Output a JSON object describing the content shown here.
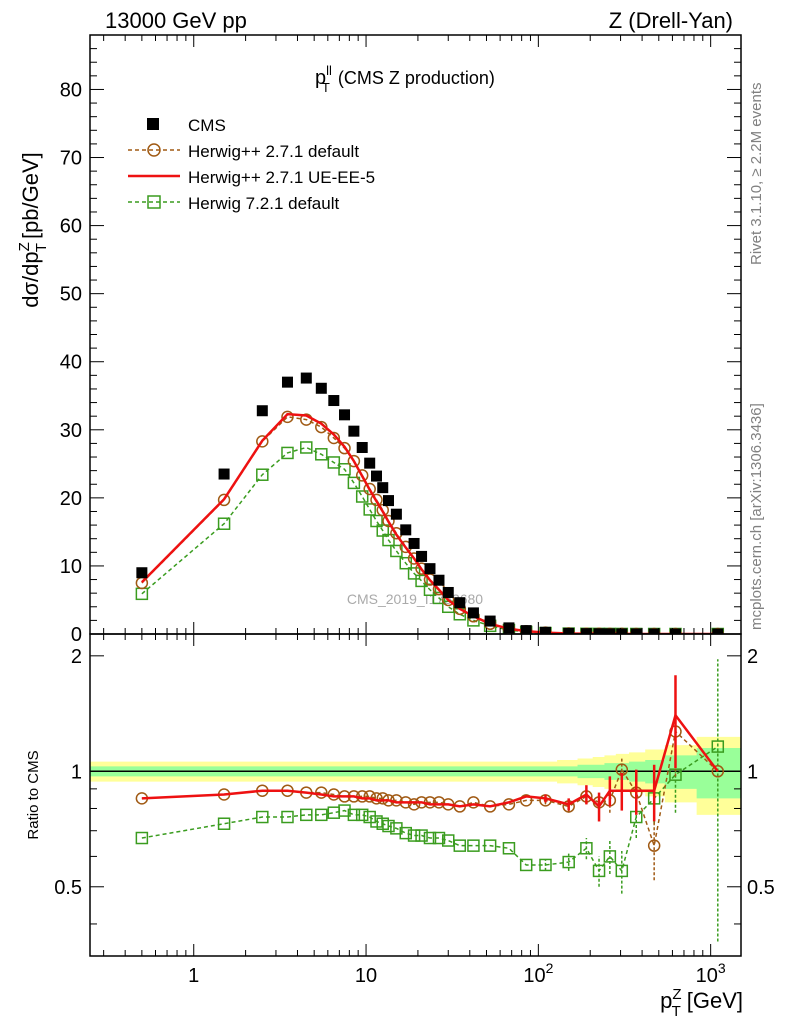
{
  "header": {
    "beam": "13000 GeV pp",
    "process": "Z (Drell-Yan)"
  },
  "side_labels": {
    "rivet": "Rivet 3.1.10, ≥ 2.2M events",
    "mcplots": "mcplots.cern.ch [arXiv:1306.3436]"
  },
  "colors": {
    "cms": "#000000",
    "herwigpp_default": "#a05a14",
    "herwigpp_ueee5": "#ee1111",
    "herwig7": "#3a9c1f",
    "band_yellow": "#ffff99",
    "band_green": "#99ff99"
  },
  "chart_data": [
    {
      "type": "scatter",
      "title_main": "p",
      "title_sup": "ll",
      "title_sub": "T",
      "title_rest": "(CMS Z production)",
      "watermark": "CMS_2019_I1753680",
      "ylabel": "dσ/dp",
      "ylabel_sup": "Z",
      "ylabel_sub": "T",
      "ylabel_unit": "[pb/GeV]",
      "xscale": "log",
      "xlim": [
        0.25,
        1500
      ],
      "ylim": [
        0,
        88
      ],
      "yticks": [
        0,
        10,
        20,
        30,
        40,
        50,
        60,
        70,
        80
      ],
      "legend": {
        "placement": "top-left",
        "entries": [
          "CMS",
          "Herwig++ 2.7.1 default",
          "Herwig++ 2.7.1 UE-EE-5",
          "Herwig 7.2.1 default"
        ]
      },
      "x": [
        0.5,
        1.5,
        2.5,
        3.5,
        4.5,
        5.5,
        6.5,
        7.5,
        8.5,
        9.5,
        10.5,
        11.5,
        12.5,
        13.5,
        15,
        17,
        19,
        21,
        23.5,
        26.5,
        30,
        35,
        42,
        52.5,
        67.5,
        85,
        110,
        150,
        190,
        225,
        260,
        305,
        370,
        470,
        625,
        1100
      ],
      "series": [
        {
          "name": "CMS",
          "style": "markers-square",
          "values": [
            9.0,
            23.5,
            32.8,
            37.0,
            37.6,
            36.1,
            34.3,
            32.2,
            29.8,
            27.4,
            25.1,
            23.2,
            21.5,
            19.6,
            17.6,
            15.3,
            13.3,
            11.4,
            9.6,
            7.9,
            6.1,
            4.6,
            3.1,
            1.9,
            0.9,
            0.5,
            0.25,
            0.1,
            0.05,
            0.035,
            0.025,
            0.015,
            0.008,
            0.004,
            0.0015,
            0.0002
          ]
        },
        {
          "name": "Herwig++ 2.7.1 default",
          "style": "dashed-circles",
          "values": [
            7.5,
            19.7,
            28.3,
            31.9,
            31.5,
            30.4,
            28.8,
            27.3,
            25.4,
            23.3,
            21.3,
            19.7,
            18.2,
            16.6,
            14.8,
            12.8,
            11.1,
            9.6,
            8.0,
            6.6,
            5.0,
            3.7,
            2.6,
            1.5,
            0.75,
            0.4,
            0.2,
            0.08,
            0.04,
            0.03,
            0.025,
            0.013,
            0.007,
            0.0026,
            0.0019,
            0.0002
          ]
        },
        {
          "name": "Herwig++ 2.7.1 UE-EE-5",
          "style": "solid-line",
          "values": [
            7.6,
            19.8,
            28.4,
            32.3,
            32.1,
            30.9,
            29.3,
            27.5,
            25.4,
            23.2,
            21.2,
            19.5,
            18.0,
            16.5,
            14.6,
            12.7,
            11.1,
            9.5,
            7.9,
            6.5,
            5.0,
            3.7,
            2.6,
            1.5,
            0.77,
            0.43,
            0.21,
            0.08,
            0.04,
            0.03,
            0.022,
            0.013,
            0.007,
            0.0035,
            0.0021,
            0.0002
          ]
        },
        {
          "name": "Herwig 7.2.1 default",
          "style": "dashed-open-squares",
          "values": [
            5.9,
            16.2,
            23.4,
            26.6,
            27.4,
            26.4,
            25.2,
            24.2,
            22.2,
            20.2,
            18.3,
            16.6,
            15.2,
            13.8,
            12.2,
            10.4,
            8.9,
            7.8,
            6.5,
            5.3,
            4.0,
            2.9,
            2.0,
            1.2,
            0.58,
            0.3,
            0.14,
            0.06,
            0.03,
            0.019,
            0.015,
            0.008,
            0.006,
            0.0034,
            0.0015,
            0.0002
          ]
        }
      ]
    },
    {
      "type": "scatter",
      "ylabel": "Ratio to CMS",
      "xlabel": "p",
      "xlabel_sup": "Z",
      "xlabel_sub": "T",
      "xlabel_unit": "[GeV]",
      "xscale": "log",
      "xlim": [
        0.25,
        1500
      ],
      "ylim": [
        0.33,
        2.28
      ],
      "yticks": [
        0.5,
        1,
        2
      ],
      "xticks": [
        1,
        10,
        100,
        1000
      ],
      "xtick_labels": [
        {
          "base": "1",
          "exp": ""
        },
        {
          "base": "10",
          "exp": ""
        },
        {
          "base": "10",
          "exp": "2"
        },
        {
          "base": "10",
          "exp": "3"
        }
      ],
      "band": {
        "yellow_half_width": [
          0.06,
          0.06,
          0.06,
          0.06,
          0.06,
          0.06,
          0.06,
          0.06,
          0.06,
          0.06,
          0.06,
          0.06,
          0.06,
          0.06,
          0.06,
          0.06,
          0.06,
          0.06,
          0.06,
          0.06,
          0.06,
          0.06,
          0.06,
          0.06,
          0.06,
          0.06,
          0.06,
          0.07,
          0.08,
          0.09,
          0.1,
          0.11,
          0.12,
          0.14,
          0.17,
          0.23
        ],
        "green_half_width": [
          0.03,
          0.03,
          0.03,
          0.03,
          0.03,
          0.03,
          0.03,
          0.03,
          0.03,
          0.03,
          0.03,
          0.03,
          0.03,
          0.03,
          0.03,
          0.03,
          0.03,
          0.03,
          0.03,
          0.03,
          0.03,
          0.03,
          0.03,
          0.03,
          0.03,
          0.03,
          0.03,
          0.03,
          0.04,
          0.04,
          0.05,
          0.05,
          0.06,
          0.07,
          0.1,
          0.15
        ]
      },
      "series": [
        {
          "name": "Herwig++ 2.7.1 default",
          "values": [
            0.85,
            0.87,
            0.89,
            0.89,
            0.88,
            0.88,
            0.87,
            0.86,
            0.86,
            0.86,
            0.86,
            0.85,
            0.85,
            0.84,
            0.84,
            0.83,
            0.82,
            0.83,
            0.83,
            0.83,
            0.82,
            0.81,
            0.83,
            0.81,
            0.82,
            0.84,
            0.84,
            0.81,
            0.86,
            0.83,
            0.84,
            1.01,
            0.88,
            0.64,
            1.27,
            1.0
          ],
          "errors": [
            0.01,
            0.01,
            0.01,
            0.01,
            0.01,
            0.01,
            0.01,
            0.01,
            0.01,
            0.01,
            0.01,
            0.01,
            0.01,
            0.01,
            0.01,
            0.01,
            0.01,
            0.01,
            0.01,
            0.01,
            0.01,
            0.01,
            0.01,
            0.01,
            0.01,
            0.01,
            0.02,
            0.03,
            0.04,
            0.05,
            0.06,
            0.07,
            0.09,
            0.12,
            0.3,
            0.0
          ]
        },
        {
          "name": "Herwig++ 2.7.1 UE-EE-5",
          "values": [
            0.85,
            0.87,
            0.89,
            0.89,
            0.88,
            0.87,
            0.86,
            0.86,
            0.86,
            0.85,
            0.85,
            0.84,
            0.84,
            0.84,
            0.83,
            0.83,
            0.83,
            0.83,
            0.82,
            0.82,
            0.82,
            0.81,
            0.82,
            0.81,
            0.83,
            0.86,
            0.85,
            0.82,
            0.87,
            0.81,
            0.89,
            0.89,
            0.89,
            0.89,
            1.4,
            1.0
          ],
          "errors": [
            0.01,
            0.01,
            0.01,
            0.01,
            0.01,
            0.01,
            0.01,
            0.01,
            0.01,
            0.01,
            0.01,
            0.01,
            0.01,
            0.01,
            0.01,
            0.01,
            0.01,
            0.01,
            0.01,
            0.01,
            0.01,
            0.01,
            0.01,
            0.01,
            0.01,
            0.01,
            0.02,
            0.03,
            0.05,
            0.07,
            0.08,
            0.1,
            0.12,
            0.15,
            0.38,
            0.0
          ]
        },
        {
          "name": "Herwig 7.2.1 default",
          "values": [
            0.67,
            0.73,
            0.76,
            0.76,
            0.77,
            0.77,
            0.78,
            0.79,
            0.77,
            0.77,
            0.76,
            0.74,
            0.73,
            0.72,
            0.71,
            0.69,
            0.68,
            0.68,
            0.67,
            0.67,
            0.66,
            0.64,
            0.64,
            0.64,
            0.63,
            0.57,
            0.57,
            0.58,
            0.63,
            0.55,
            0.6,
            0.55,
            0.76,
            0.85,
            0.98,
            1.16
          ],
          "errors": [
            0.01,
            0.01,
            0.01,
            0.01,
            0.01,
            0.01,
            0.01,
            0.01,
            0.01,
            0.01,
            0.01,
            0.01,
            0.01,
            0.01,
            0.01,
            0.01,
            0.01,
            0.01,
            0.01,
            0.01,
            0.01,
            0.01,
            0.01,
            0.01,
            0.01,
            0.01,
            0.02,
            0.03,
            0.04,
            0.05,
            0.06,
            0.07,
            0.09,
            0.12,
            0.2,
            0.8
          ]
        }
      ]
    }
  ]
}
